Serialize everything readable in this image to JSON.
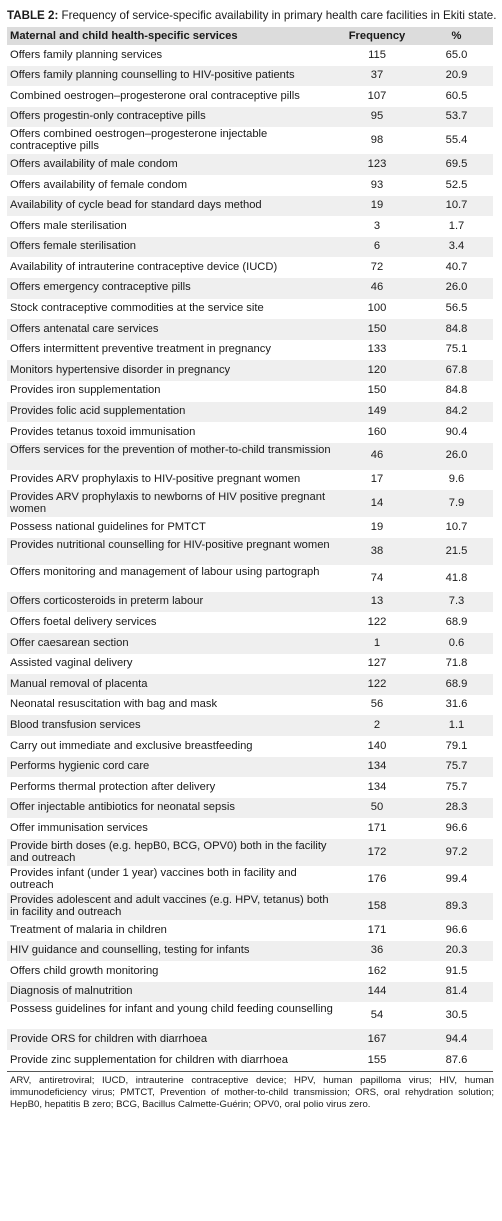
{
  "table_title": {
    "label": "TABLE 2:",
    "text": " Frequency of service-specific availability in primary health care facilities in Ekiti state."
  },
  "columns": [
    "Maternal and child health-specific services",
    "Frequency",
    "%"
  ],
  "rows": [
    {
      "service": "Offers family planning services",
      "frequency": "115",
      "percent": "65.0"
    },
    {
      "service": "Offers family planning counselling to HIV-positive patients",
      "frequency": "37",
      "percent": "20.9"
    },
    {
      "service": "Combined oestrogen–progesterone oral contraceptive pills",
      "frequency": "107",
      "percent": "60.5"
    },
    {
      "service": "Offers progestin-only contraceptive pills",
      "frequency": "95",
      "percent": "53.7"
    },
    {
      "service": "Offers combined oestrogen–progesterone injectable contraceptive pills",
      "frequency": "98",
      "percent": "55.4",
      "tall": true
    },
    {
      "service": "Offers availability of male condom",
      "frequency": "123",
      "percent": "69.5"
    },
    {
      "service": "Offers availability of female condom",
      "frequency": "93",
      "percent": "52.5"
    },
    {
      "service": "Availability of cycle bead for standard days method",
      "frequency": "19",
      "percent": "10.7"
    },
    {
      "service": "Offers male sterilisation",
      "frequency": "3",
      "percent": "1.7"
    },
    {
      "service": "Offers female sterilisation",
      "frequency": "6",
      "percent": "3.4"
    },
    {
      "service": "Availability of intrauterine contraceptive device (IUCD)",
      "frequency": "72",
      "percent": "40.7"
    },
    {
      "service": "Offers emergency contraceptive pills",
      "frequency": "46",
      "percent": "26.0"
    },
    {
      "service": "Stock contraceptive commodities at the service site",
      "frequency": "100",
      "percent": "56.5"
    },
    {
      "service": "Offers antenatal care services",
      "frequency": "150",
      "percent": "84.8"
    },
    {
      "service": "Offers intermittent preventive treatment in pregnancy",
      "frequency": "133",
      "percent": "75.1"
    },
    {
      "service": "Monitors hypertensive disorder in pregnancy",
      "frequency": "120",
      "percent": "67.8"
    },
    {
      "service": "Provides iron supplementation",
      "frequency": "150",
      "percent": "84.8"
    },
    {
      "service": "Provides folic acid supplementation",
      "frequency": "149",
      "percent": "84.2"
    },
    {
      "service": "Provides tetanus toxoid immunisation",
      "frequency": "160",
      "percent": "90.4"
    },
    {
      "service": "Offers services for the prevention of mother-to-child transmission",
      "frequency": "46",
      "percent": "26.0",
      "tall": true
    },
    {
      "service": "Provides ARV prophylaxis to HIV-positive pregnant women",
      "frequency": "17",
      "percent": "9.6"
    },
    {
      "service": "Provides ARV prophylaxis to newborns of HIV positive pregnant women",
      "frequency": "14",
      "percent": "7.9",
      "tall": true
    },
    {
      "service": "Possess national guidelines for PMTCT",
      "frequency": "19",
      "percent": "10.7"
    },
    {
      "service": "Provides nutritional counselling for HIV-positive pregnant women",
      "frequency": "38",
      "percent": "21.5",
      "tall": true
    },
    {
      "service": "Offers monitoring and management of labour using partograph",
      "frequency": "74",
      "percent": "41.8",
      "tall": true
    },
    {
      "service": "Offers corticosteroids in preterm labour",
      "frequency": "13",
      "percent": "7.3"
    },
    {
      "service": "Offers foetal delivery services",
      "frequency": "122",
      "percent": "68.9"
    },
    {
      "service": "Offer caesarean section",
      "frequency": "1",
      "percent": "0.6"
    },
    {
      "service": "Assisted vaginal delivery",
      "frequency": "127",
      "percent": "71.8"
    },
    {
      "service": "Manual removal of placenta",
      "frequency": "122",
      "percent": "68.9"
    },
    {
      "service": "Neonatal resuscitation with bag and mask",
      "frequency": "56",
      "percent": "31.6"
    },
    {
      "service": "Blood transfusion services",
      "frequency": "2",
      "percent": "1.1"
    },
    {
      "service": "Carry out immediate and exclusive breastfeeding",
      "frequency": "140",
      "percent": "79.1"
    },
    {
      "service": "Performs hygienic cord care",
      "frequency": "134",
      "percent": "75.7"
    },
    {
      "service": "Performs thermal protection after delivery",
      "frequency": "134",
      "percent": "75.7"
    },
    {
      "service": "Offer injectable antibiotics for neonatal sepsis",
      "frequency": "50",
      "percent": "28.3"
    },
    {
      "service": "Offer immunisation services",
      "frequency": "171",
      "percent": "96.6"
    },
    {
      "service": "Provide birth doses (e.g. hepB0, BCG, OPV0) both in the facility and outreach",
      "frequency": "172",
      "percent": "97.2",
      "tall": true
    },
    {
      "service": "Provides infant (under 1 year) vaccines both in facility and outreach",
      "frequency": "176",
      "percent": "99.4",
      "tall": true
    },
    {
      "service": "Provides adolescent and adult vaccines (e.g. HPV, tetanus) both in facility and outreach",
      "frequency": "158",
      "percent": "89.3",
      "tall": true
    },
    {
      "service": "Treatment of malaria in children",
      "frequency": "171",
      "percent": "96.6"
    },
    {
      "service": "HIV guidance and counselling, testing for infants",
      "frequency": "36",
      "percent": "20.3"
    },
    {
      "service": "Offers child growth monitoring",
      "frequency": "162",
      "percent": "91.5"
    },
    {
      "service": "Diagnosis of malnutrition",
      "frequency": "144",
      "percent": "81.4"
    },
    {
      "service": "Possess guidelines for infant and young child feeding counselling",
      "frequency": "54",
      "percent": "30.5",
      "tall": true
    },
    {
      "service": "Provide ORS for children with diarrhoea",
      "frequency": "167",
      "percent": "94.4"
    },
    {
      "service": "Provide zinc supplementation for children with diarrhoea",
      "frequency": "155",
      "percent": "87.6"
    }
  ],
  "footnote": "ARV, antiretroviral; IUCD, intrauterine contraceptive device; HPV, human papilloma virus; HIV, human immunodeficiency virus; PMTCT, Prevention of mother-to-child transmission; ORS, oral rehydration solution; HepB0, hepatitis B zero; BCG, Bacillus Calmette-Guérin; OPV0, oral polio virus zero."
}
